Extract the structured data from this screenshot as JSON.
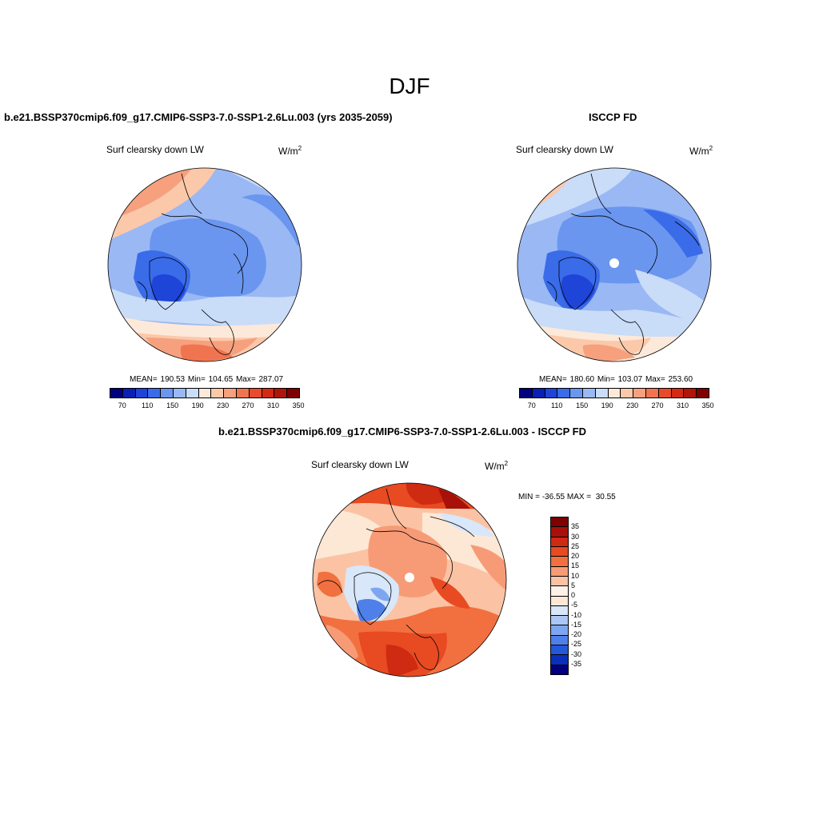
{
  "figure": {
    "season_title": "DJF"
  },
  "panels": {
    "model": {
      "title": "b.e21.BSSP370cmip6.f09_g17.CMIP6-SSP3-7.0-SSP1-2.6Lu.003 (yrs 2035-2059)",
      "variable": "Surf clearsky down LW",
      "units_base": "W/m",
      "units_exp": "2",
      "stats": "MEAN= 190.53  Min= 104.65  Max= 287.07",
      "colorbar_labels": [
        "70",
        "110",
        "150",
        "190",
        "230",
        "270",
        "310",
        "350"
      ]
    },
    "obs": {
      "title": "ISCCP FD",
      "variable": "Surf clearsky down LW",
      "units_base": "W/m",
      "units_exp": "2",
      "stats": "MEAN= 180.60  Min= 103.07  Max= 253.60",
      "colorbar_labels": [
        "70",
        "110",
        "150",
        "190",
        "230",
        "270",
        "310",
        "350"
      ]
    },
    "diff": {
      "title": "b.e21.BSSP370cmip6.f09_g17.CMIP6-SSP3-7.0-SSP1-2.6Lu.003 - ISCCP FD",
      "variable": "Surf clearsky down LW",
      "units_base": "W/m",
      "units_exp": "2",
      "minmax": "MIN = -36.55 MAX =  30.55",
      "colorbar_labels": [
        "35",
        "30",
        "25",
        "20",
        "15",
        "10",
        "5",
        "0",
        "-5",
        "-10",
        "-15",
        "-20",
        "-25",
        "-30",
        "-35"
      ]
    }
  },
  "colors": {
    "abs_scale": [
      "#00007f",
      "#0a1fb4",
      "#1f44d8",
      "#3a6be8",
      "#6a96f0",
      "#9ab8f4",
      "#c9dcf8",
      "#fde9d9",
      "#fbc8aa",
      "#f6a07e",
      "#f0744f",
      "#e84a2b",
      "#d42a14",
      "#b01509",
      "#7f0000"
    ],
    "diff_scale": [
      "#7f0000",
      "#a8100a",
      "#cf2a12",
      "#e84a22",
      "#f2703f",
      "#f79b76",
      "#fbc3a4",
      "#fde8d6",
      "#d8e7fa",
      "#aac7f6",
      "#7ea6f0",
      "#4f7fe8",
      "#2458da",
      "#0a2fb8",
      "#000080"
    ]
  }
}
